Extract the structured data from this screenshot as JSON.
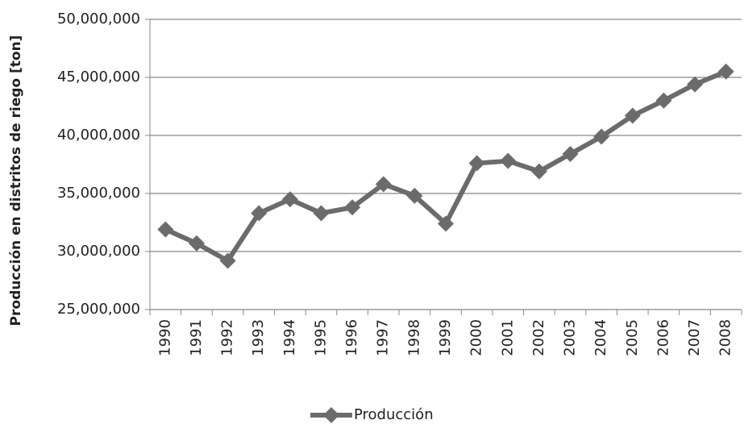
{
  "chart_data": {
    "type": "line",
    "y_axis_label": "Producción en distritos de riego [ton]",
    "categories": [
      "1990",
      "1991",
      "1992",
      "1993",
      "1994",
      "1995",
      "1996",
      "1997",
      "1998",
      "1999",
      "2000",
      "2001",
      "2002",
      "2003",
      "2004",
      "2005",
      "2006",
      "2007",
      "2008"
    ],
    "series": [
      {
        "name": "Producción",
        "color": "#6b6b6b",
        "values": [
          31900000,
          30700000,
          29200000,
          33300000,
          34500000,
          33300000,
          33800000,
          35800000,
          34800000,
          32400000,
          37600000,
          37800000,
          36900000,
          38400000,
          39900000,
          41700000,
          43000000,
          44400000,
          45500000
        ]
      }
    ],
    "ylim": [
      25000000,
      50000000
    ],
    "yticks": [
      {
        "value": 25000000,
        "label": "25,000,000"
      },
      {
        "value": 30000000,
        "label": "30,000,000"
      },
      {
        "value": 35000000,
        "label": "35,000,000"
      },
      {
        "value": 40000000,
        "label": "40,000,000"
      },
      {
        "value": 45000000,
        "label": "45,000,000"
      },
      {
        "value": 50000000,
        "label": "50,000,000"
      }
    ],
    "grid": true,
    "legend": "bottom"
  }
}
